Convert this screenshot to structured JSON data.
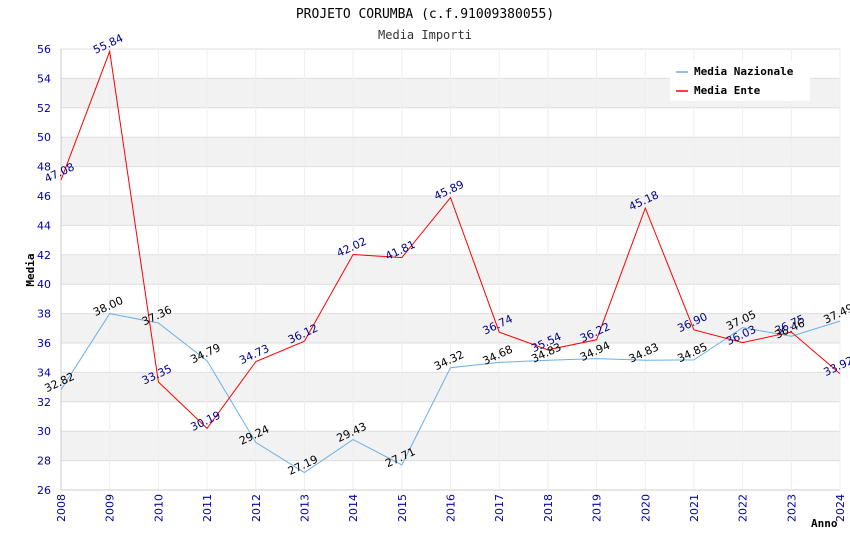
{
  "chart_data": {
    "type": "line",
    "title": "PROJETO CORUMBA (c.f.91009380055)",
    "subtitle": "Media Importi",
    "xlabel": "Anno",
    "ylabel": "Media",
    "ylim": [
      26,
      56
    ],
    "yticks": [
      26,
      28,
      30,
      32,
      34,
      36,
      38,
      40,
      42,
      44,
      46,
      48,
      50,
      52,
      54,
      56
    ],
    "categories": [
      "2008",
      "2009",
      "2010",
      "2011",
      "2012",
      "2013",
      "2014",
      "2015",
      "2016",
      "2017",
      "2018",
      "2019",
      "2020",
      "2021",
      "2022",
      "2023",
      "2024"
    ],
    "grid": "horizontal bands",
    "legend_position": "top-right",
    "series": [
      {
        "name": "Media Nazionale",
        "color": "#6ab0e8",
        "label_color": "#000000",
        "values": [
          32.82,
          38.0,
          37.36,
          34.79,
          29.24,
          27.19,
          29.43,
          27.71,
          34.32,
          34.68,
          34.83,
          34.94,
          34.83,
          34.85,
          37.05,
          36.46,
          37.49
        ],
        "labels": [
          "32.82",
          "38.00",
          "37.36",
          "34.79",
          "29.24",
          "27.19",
          "29.43",
          "27.71",
          "34.32",
          "34.68",
          "34.83",
          "34.94",
          "34.83",
          "34.85",
          "37.05",
          "36.46",
          "37.49"
        ]
      },
      {
        "name": "Media Ente",
        "color": "#ff0000",
        "label_color": "#00008b",
        "values": [
          47.08,
          55.84,
          33.35,
          30.19,
          34.73,
          36.12,
          42.02,
          41.81,
          45.89,
          36.74,
          35.54,
          36.22,
          45.18,
          36.9,
          36.03,
          36.75,
          33.92
        ],
        "labels": [
          "47.08",
          "55.84",
          "33.35",
          "30.19",
          "34.73",
          "36.12",
          "42.02",
          "41.81",
          "45.89",
          "36.74",
          "35.54",
          "36.22",
          "45.18",
          "36.90",
          "36.03",
          "36.75",
          "33.92"
        ]
      }
    ]
  }
}
